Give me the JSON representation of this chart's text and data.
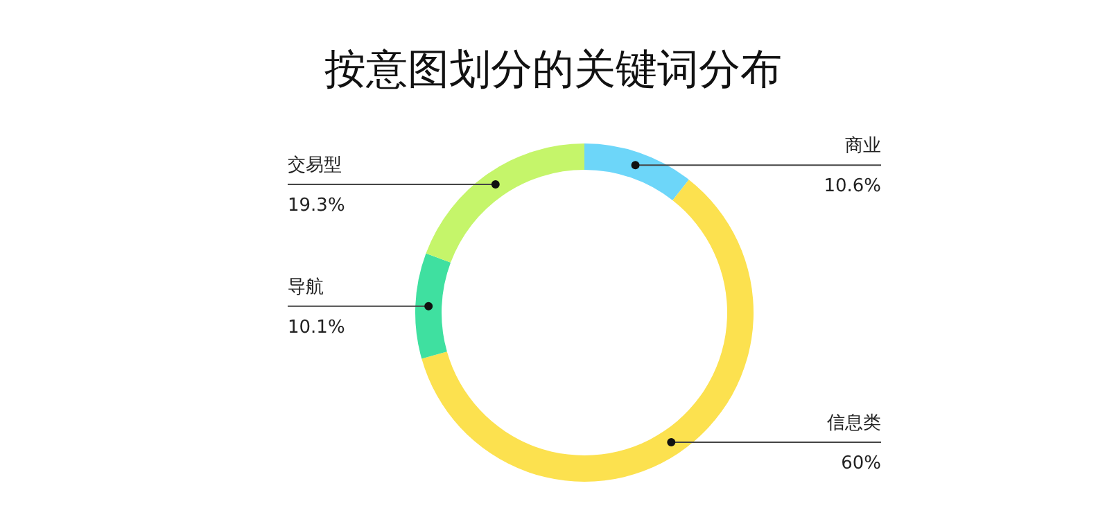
{
  "chart_data": {
    "type": "donut",
    "title": "按意图划分的关键词分布",
    "categories": [
      "商业",
      "信息类",
      "导航",
      "交易型"
    ],
    "values": [
      10.6,
      60,
      10.1,
      19.3
    ],
    "colors": [
      "#6dd6f9",
      "#fce14f",
      "#3fe0a0",
      "#c5f56a"
    ],
    "value_labels": [
      "10.6%",
      "60%",
      "10.1%",
      "19.3%"
    ]
  }
}
